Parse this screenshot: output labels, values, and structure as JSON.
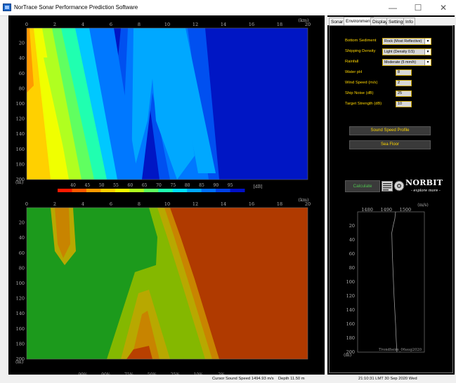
{
  "window": {
    "title": "NorTrace Sonar Performance Prediction Software",
    "minimize": "—",
    "maximize": "☐",
    "close": "✕"
  },
  "tabs": [
    "Sonar",
    "Environment",
    "Display",
    "Settings",
    "Info"
  ],
  "active_tab": "Environment",
  "environment": {
    "fields": [
      {
        "label": "Bottom Sediment",
        "type": "select",
        "value": "Rock (Most Reflective)"
      },
      {
        "label": "Shipping Density",
        "type": "select",
        "value": "Light (Density 0.5)"
      },
      {
        "label": "Rainfall",
        "type": "select",
        "value": "Moderate (5 mm/h)"
      },
      {
        "label": "Water pH",
        "type": "input",
        "value": "8"
      },
      {
        "label": "Wind Speed (m/s)",
        "type": "input",
        "value": "2"
      },
      {
        "label": "Ship Noise (dB)",
        "type": "input",
        "value": "25"
      },
      {
        "label": "Target Strength (dB)",
        "type": "input",
        "value": "10"
      }
    ],
    "sound_speed_button": "Sound Speed Profile",
    "sea_floor_button": "Sea Floor",
    "calculate_button": "Calculate"
  },
  "logo": {
    "name": "NORBIT",
    "tagline": "- explore more -"
  },
  "plot_axes": {
    "x_unit": "(km)",
    "y_unit": "(m)",
    "x_ticks": [
      "0",
      "2",
      "4",
      "6",
      "8",
      "10",
      "12",
      "14",
      "16",
      "18",
      "20"
    ],
    "y_ticks": [
      "20",
      "40",
      "60",
      "80",
      "100",
      "120",
      "140",
      "160",
      "180",
      "200"
    ]
  },
  "tl_colorbar": {
    "ticks": [
      "40",
      "45",
      "50",
      "55",
      "60",
      "65",
      "70",
      "75",
      "80",
      "85",
      "90",
      "95"
    ],
    "unit": "[dB]"
  },
  "pd_colorbar": {
    "ticks": [
      "99%",
      "90%",
      "75%",
      "50%",
      "25%",
      "10%",
      "2%"
    ],
    "unit": "(%)"
  },
  "colors": {
    "tl_scale": [
      "#ff1a00",
      "#ff5a00",
      "#ff9a00",
      "#ffd000",
      "#f0ff00",
      "#b0ff20",
      "#60ff60",
      "#20ffb0",
      "#00e0ff",
      "#00a8ff",
      "#0070ff",
      "#0040e6",
      "#0010c8"
    ],
    "pd_scale": [
      "#1c9a1c",
      "#46a40f",
      "#84b800",
      "#b8a800",
      "#c88400",
      "#b84000",
      "#a82a00",
      "#980000"
    ]
  },
  "sound_speed_profile": {
    "speed_unit": "(m/s)",
    "depth_unit": "(m)",
    "speed_ticks": [
      "1480",
      "1490",
      "1500"
    ],
    "depth_ticks": [
      "20",
      "40",
      "60",
      "80",
      "100",
      "120",
      "140",
      "160",
      "180",
      "200"
    ],
    "profile_name": "Trondheim_06aug2020",
    "profile": {
      "speed_range": [
        1475,
        1510
      ],
      "depth_range": [
        0,
        200
      ],
      "points": [
        [
          1494.9,
          0
        ],
        [
          1494.5,
          10
        ],
        [
          1493.6,
          20
        ],
        [
          1492.9,
          30
        ],
        [
          1493.0,
          40
        ],
        [
          1493.2,
          60
        ],
        [
          1493.5,
          80
        ],
        [
          1493.8,
          100
        ],
        [
          1494.1,
          120
        ],
        [
          1494.5,
          140
        ],
        [
          1494.9,
          160
        ],
        [
          1495.2,
          180
        ],
        [
          1495.6,
          200
        ]
      ]
    }
  },
  "status": {
    "cursor_sound_speed": "Cursor Sound Speed 1494.93  m/s",
    "depth": "Depth  11.50  m",
    "time": "21:10:31 LMT  30 Sep 2020  Wed"
  }
}
